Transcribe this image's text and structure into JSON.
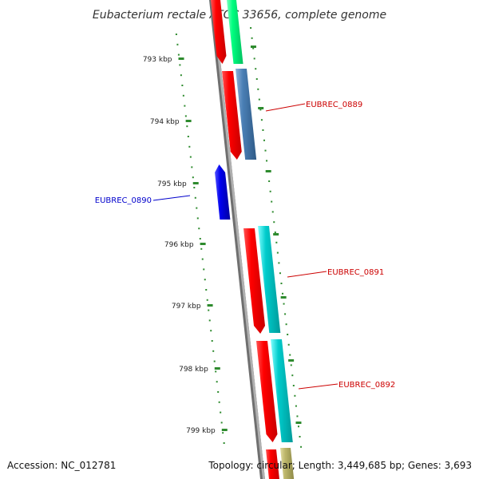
{
  "title": "Eubacterium rectale ATCC 33656, complete genome",
  "footer": {
    "accession": "Accession: NC_012781",
    "summary": "Topology: circular; Length: 3,449,685 bp; Genes: 3,693"
  },
  "colors": {
    "backbone": "#8a8a8a",
    "tick": "#2e8b2e",
    "red": "#ff0000",
    "green": "#00ff7f",
    "steelblue": "#4a7fb5",
    "blue": "#0000ee",
    "cyan": "#00cccc",
    "khaki": "#bdb76b",
    "label_red": "#cc0000",
    "label_blue": "#0000cc"
  },
  "ticks": [
    {
      "label": "793 kbp"
    },
    {
      "label": "794 kbp"
    },
    {
      "label": "795 kbp"
    },
    {
      "label": "796 kbp"
    },
    {
      "label": "797 kbp"
    },
    {
      "label": "798 kbp"
    },
    {
      "label": "799 kbp"
    }
  ],
  "genes": [
    {
      "label": "EUBREC_0889"
    },
    {
      "label": "EUBREC_0890"
    },
    {
      "label": "EUBREC_0891"
    },
    {
      "label": "EUBREC_0892"
    }
  ]
}
